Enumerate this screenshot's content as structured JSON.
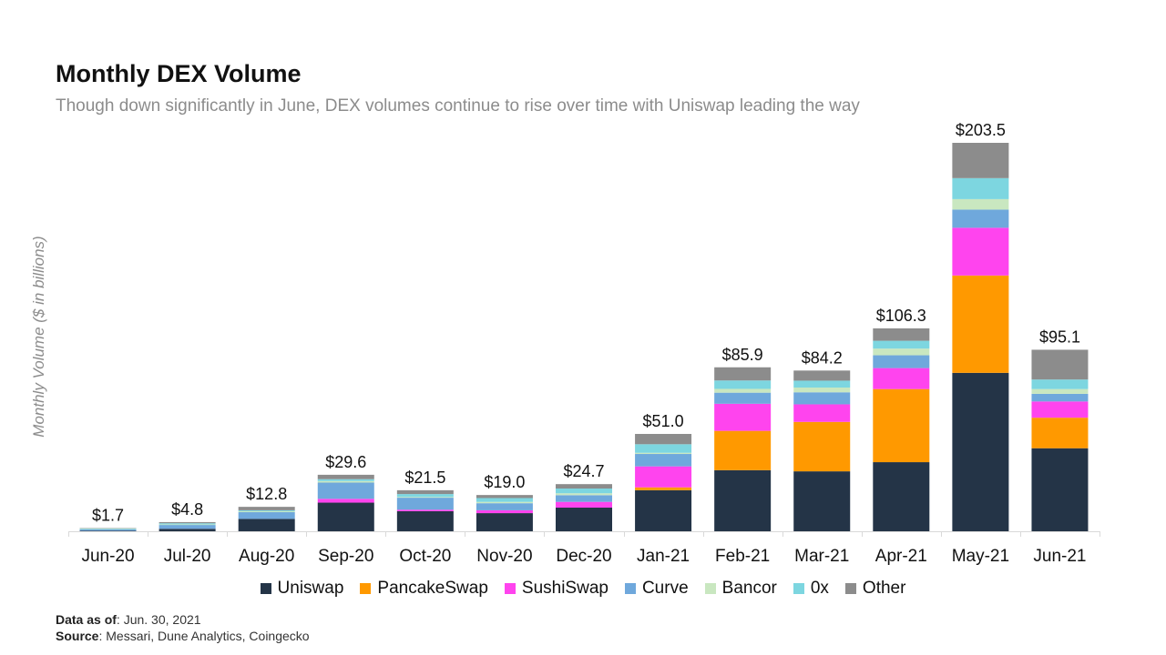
{
  "header": {
    "title": "Monthly DEX Volume",
    "subtitle": "Though down significantly in June, DEX volumes continue to rise over time with Uniswap leading the way"
  },
  "footer": {
    "data_as_of_label": "Data as of",
    "data_as_of_value": ": Jun. 30, 2021",
    "source_label": "Source",
    "source_value": ": Messari, Dune Analytics, Coingecko"
  },
  "chart_data": {
    "type": "bar",
    "stacked": true,
    "title": "Monthly DEX Volume",
    "subtitle": "Though down significantly in June, DEX volumes continue to rise over time with Uniswap leading the way",
    "xlabel": "",
    "ylabel": "Monthly Volume ($ in billions)",
    "ylim": [
      0,
      210
    ],
    "grid": false,
    "legend_position": "bottom",
    "categories": [
      "Jun-20",
      "Jul-20",
      "Aug-20",
      "Sep-20",
      "Oct-20",
      "Nov-20",
      "Dec-20",
      "Jan-21",
      "Feb-21",
      "Mar-21",
      "Apr-21",
      "May-21",
      "Jun-21"
    ],
    "totals": [
      1.7,
      4.8,
      12.8,
      29.6,
      21.5,
      19.0,
      24.7,
      51.0,
      85.9,
      84.2,
      106.3,
      203.5,
      95.1
    ],
    "total_labels": [
      "$1.7",
      "$4.8",
      "$12.8",
      "$29.6",
      "$21.5",
      "$19.0",
      "$24.7",
      "$51.0",
      "$85.9",
      "$84.2",
      "$106.3",
      "$203.5",
      "$95.1"
    ],
    "series": [
      {
        "name": "Uniswap",
        "color": "#243447",
        "values": [
          0.3,
          1.3,
          6.5,
          15.0,
          10.5,
          9.5,
          12.4,
          21.5,
          32.0,
          31.4,
          36.2,
          83.0,
          43.5
        ]
      },
      {
        "name": "PancakeSwap",
        "color": "#ff9900",
        "values": [
          0,
          0,
          0,
          0,
          0,
          0,
          0,
          1.5,
          20.6,
          25.9,
          38.3,
          51.0,
          16.0
        ]
      },
      {
        "name": "SushiSwap",
        "color": "#ff44ee",
        "values": [
          0,
          0,
          0,
          2.0,
          0.8,
          1.5,
          3.0,
          11.0,
          14.2,
          9.2,
          11.0,
          25.0,
          8.5
        ]
      },
      {
        "name": "Curve",
        "color": "#6fa8dc",
        "values": [
          0.7,
          2.0,
          3.5,
          8.5,
          6.3,
          3.7,
          3.5,
          6.5,
          5.8,
          6.3,
          6.7,
          9.5,
          4.0
        ]
      },
      {
        "name": "Bancor",
        "color": "#c9e7c0",
        "values": [
          0.2,
          0.3,
          0.5,
          0.8,
          0.4,
          0.7,
          1.0,
          0.6,
          2.0,
          2.5,
          3.5,
          5.5,
          2.5
        ]
      },
      {
        "name": "0x",
        "color": "#7dd6e0",
        "values": [
          0.3,
          0.6,
          0.5,
          1.0,
          1.5,
          2.0,
          2.5,
          4.5,
          4.4,
          3.6,
          4.1,
          11.0,
          5.0
        ]
      },
      {
        "name": "Other",
        "color": "#8c8c8c",
        "values": [
          0.2,
          0.6,
          1.8,
          2.3,
          2.0,
          1.6,
          2.3,
          5.4,
          6.9,
          5.3,
          6.5,
          18.5,
          15.6
        ]
      }
    ]
  }
}
